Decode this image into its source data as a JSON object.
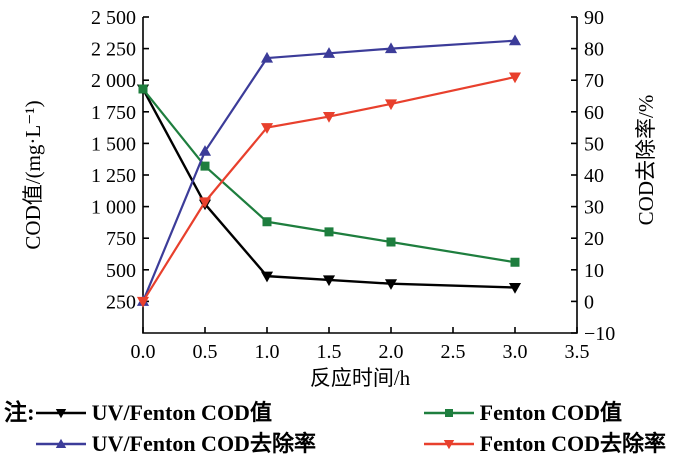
{
  "figure": {
    "note_prefix": "注:",
    "background": "#ffffff"
  },
  "chart_data": {
    "type": "line",
    "title": "",
    "xlabel": "反应时间/h",
    "ylabel_left": "COD值/(mg·L⁻¹)",
    "ylabel_right": "COD去除率/%",
    "xlim": [
      0,
      3.5
    ],
    "ylim_left": [
      0,
      2500
    ],
    "ylim_right": [
      -10,
      90
    ],
    "grid": false,
    "legend_position": "below",
    "x_ticks": [
      "0.0",
      "0.5",
      "1.0",
      "1.5",
      "2.0",
      "2.5",
      "3.0",
      "3.5"
    ],
    "y_left_ticks": [
      "2 500",
      "2 250",
      "2 000",
      "1 750",
      "1 500",
      "1 250",
      "1 000",
      "750",
      "500",
      "250"
    ],
    "y_right_ticks": [
      "90",
      "80",
      "70",
      "60",
      "50",
      "40",
      "30",
      "20",
      "10",
      "0",
      "−10"
    ],
    "x": [
      0.0,
      0.5,
      1.0,
      1.5,
      2.0,
      3.0
    ],
    "series": [
      {
        "name": "UV/Fenton COD值",
        "axis": "left",
        "color": "#000000",
        "marker": "triangle-down",
        "line_width": 2.4,
        "values": [
          1930,
          1020,
          450,
          420,
          390,
          360
        ]
      },
      {
        "name": "Fenton COD值",
        "axis": "left",
        "color": "#1e7e3e",
        "marker": "square",
        "line_width": 2.2,
        "values": [
          1930,
          1320,
          880,
          800,
          720,
          560
        ]
      },
      {
        "name": "UV/Fenton COD去除率",
        "axis": "right",
        "color": "#3c3c99",
        "marker": "triangle-up",
        "line_width": 2.2,
        "values": [
          0,
          47.5,
          77,
          78.5,
          80,
          82.5
        ]
      },
      {
        "name": "Fenton COD去除率",
        "axis": "right",
        "color": "#e8402d",
        "marker": "triangle-down",
        "line_width": 2.2,
        "values": [
          0,
          31.5,
          55,
          58.5,
          62.5,
          71
        ]
      }
    ]
  }
}
